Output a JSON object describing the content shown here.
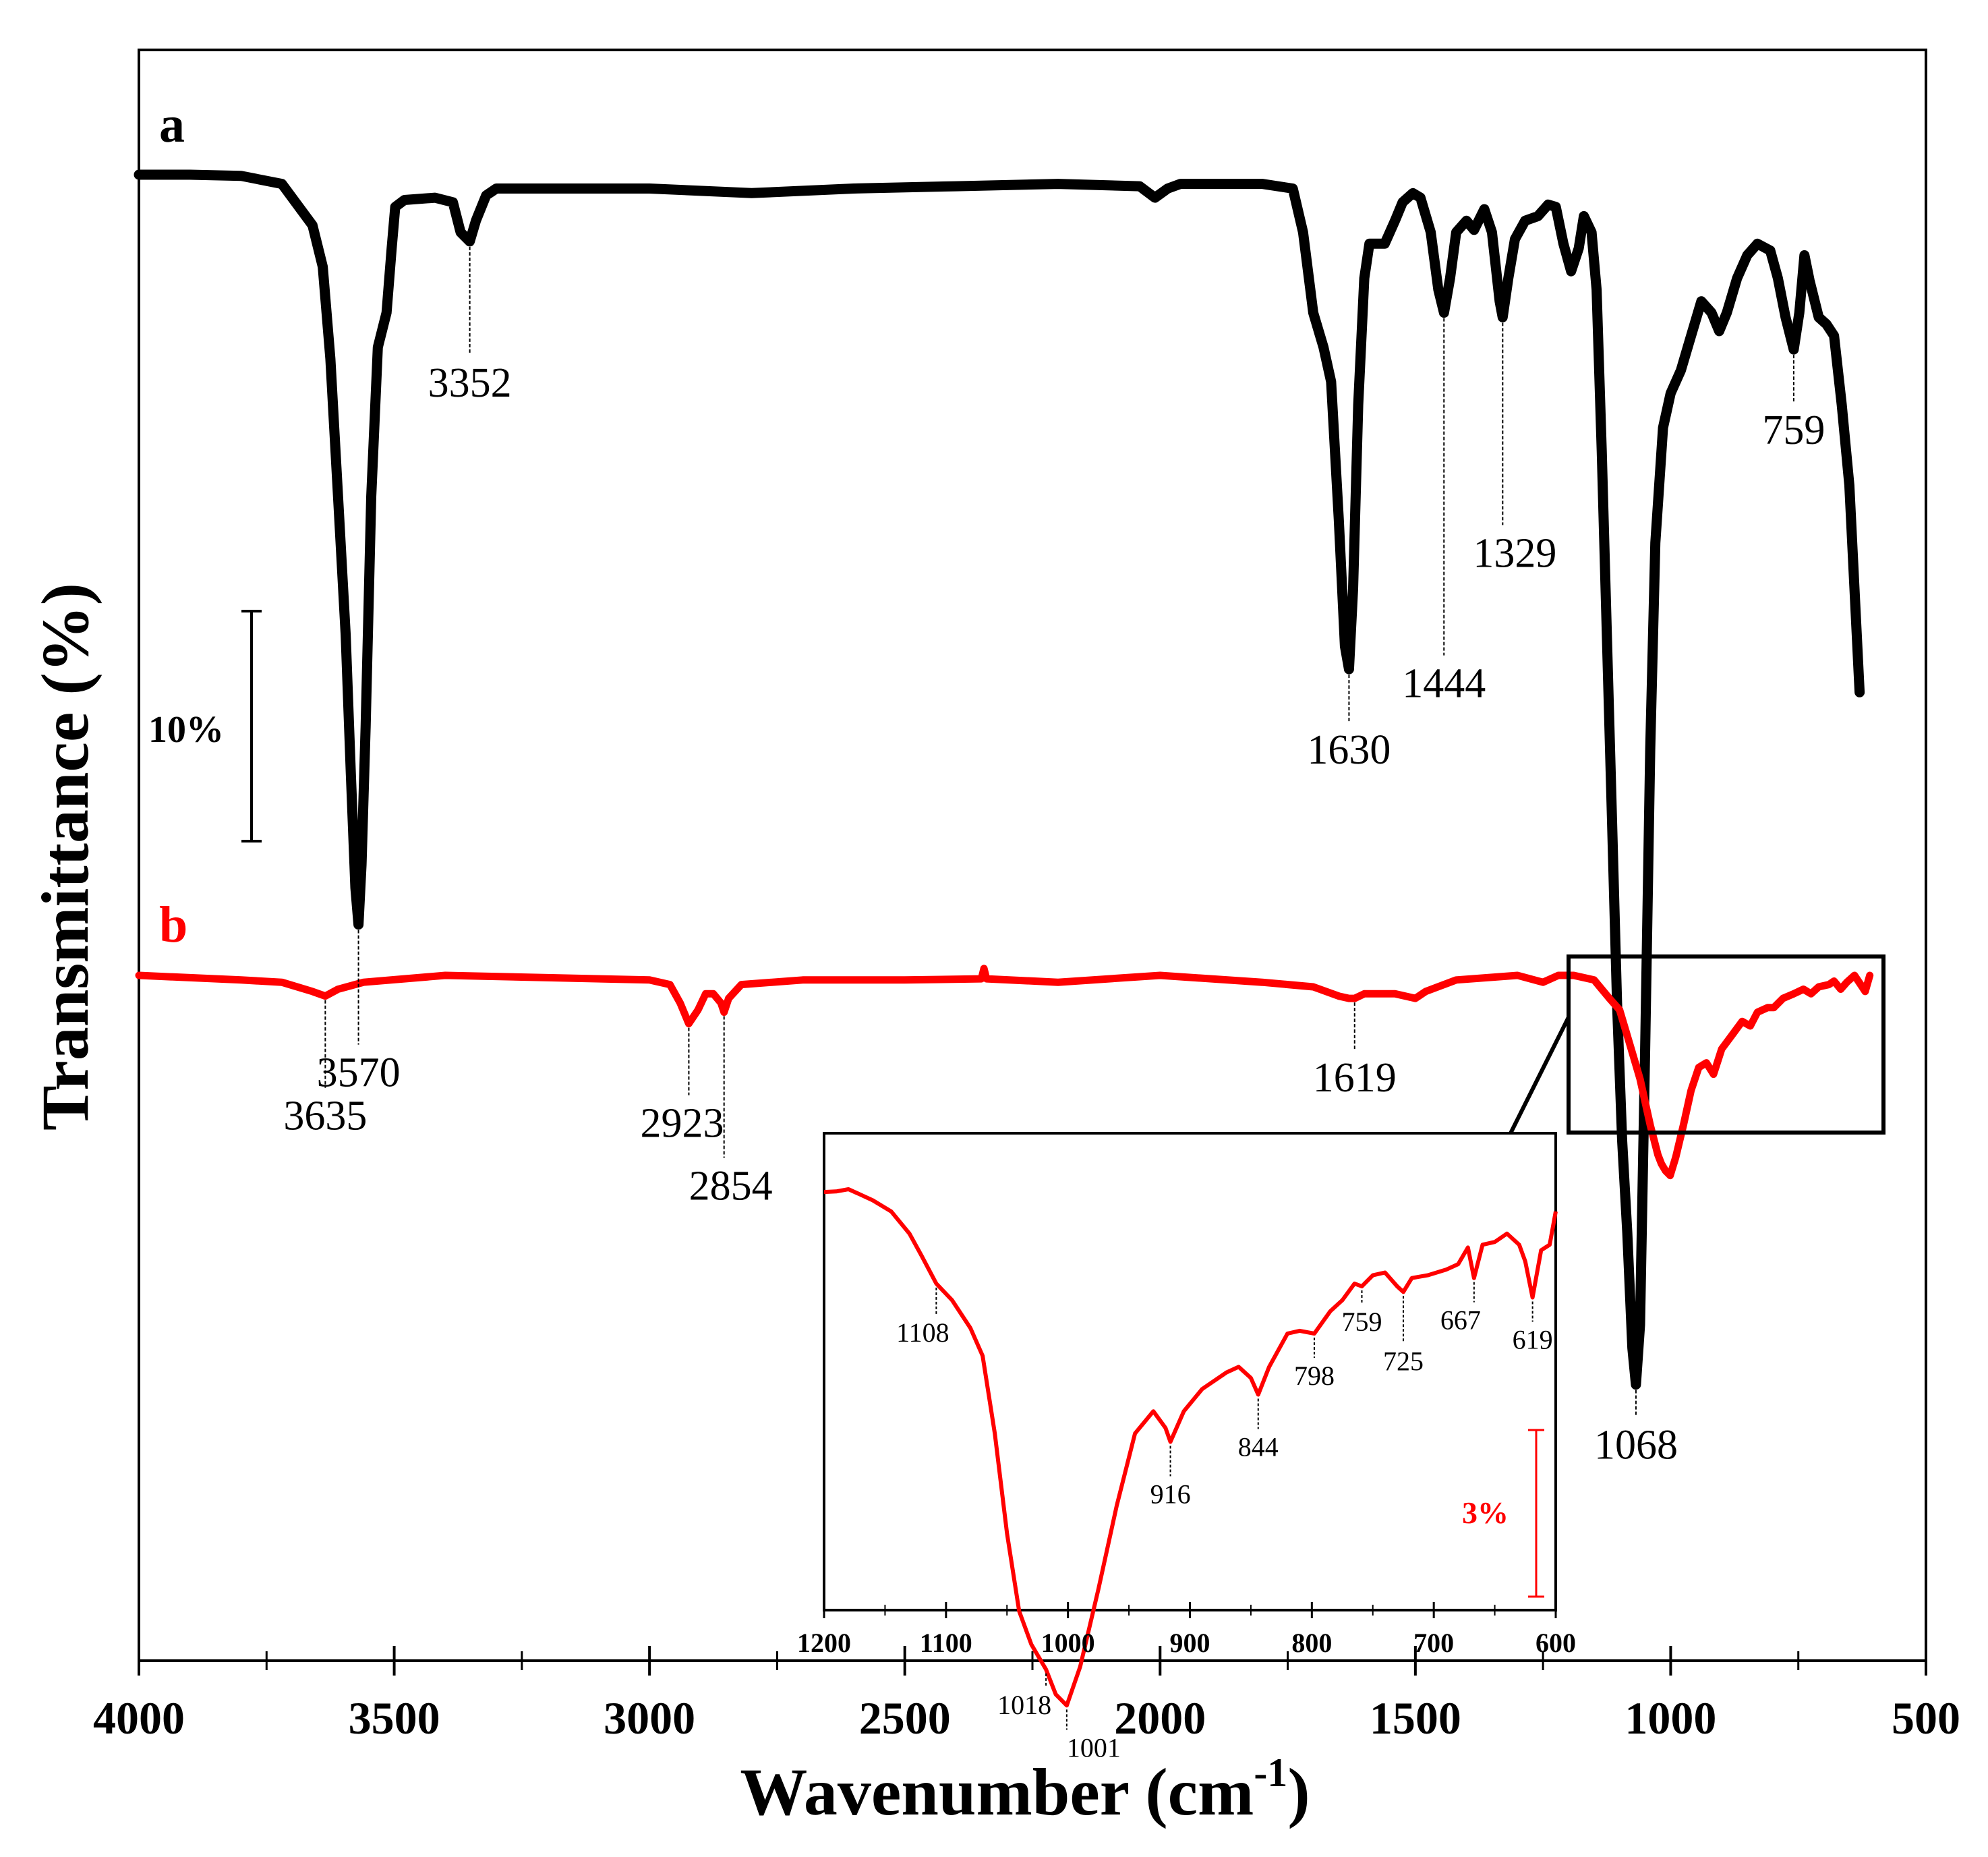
{
  "chart_data": {
    "type": "line",
    "xlabel_main": "Wavenumber (cm",
    "xlabel_sup": "-1",
    "xlabel_tail": ")",
    "ylabel": "Transmittance (%)",
    "xlim": [
      4000,
      500
    ],
    "xticks": [
      "4000",
      "3500",
      "3000",
      "2500",
      "2000",
      "1500",
      "1000",
      "500"
    ],
    "colors": {
      "a": "#000000",
      "b": "#ff0000",
      "frame": "#000000"
    },
    "scale_bar_main": {
      "label": "10%",
      "transmittance_percent": 10
    },
    "series": [
      {
        "name": "a",
        "label": "a",
        "color": "#000000",
        "points": [
          [
            4000,
            0.0
          ],
          [
            3900,
            0.0
          ],
          [
            3800,
            0.05
          ],
          [
            3720,
            0.4
          ],
          [
            3660,
            2.2
          ],
          [
            3640,
            4.0
          ],
          [
            3625,
            8.0
          ],
          [
            3610,
            14.0
          ],
          [
            3595,
            20.0
          ],
          [
            3585,
            26.0
          ],
          [
            3576,
            31.0
          ],
          [
            3570,
            32.6
          ],
          [
            3564,
            30.0
          ],
          [
            3556,
            24.0
          ],
          [
            3545,
            14.0
          ],
          [
            3532,
            7.5
          ],
          [
            3515,
            6.0
          ],
          [
            3505,
            3.2
          ],
          [
            3498,
            1.4
          ],
          [
            3480,
            1.1
          ],
          [
            3420,
            1.0
          ],
          [
            3385,
            1.2
          ],
          [
            3370,
            2.5
          ],
          [
            3352,
            2.9
          ],
          [
            3340,
            2.0
          ],
          [
            3320,
            0.9
          ],
          [
            3300,
            0.6
          ],
          [
            3000,
            0.6
          ],
          [
            2800,
            0.8
          ],
          [
            2600,
            0.6
          ],
          [
            2400,
            0.5
          ],
          [
            2200,
            0.4
          ],
          [
            2040,
            0.5
          ],
          [
            2010,
            1.0
          ],
          [
            1985,
            0.6
          ],
          [
            1960,
            0.4
          ],
          [
            1800,
            0.4
          ],
          [
            1740,
            0.6
          ],
          [
            1720,
            2.5
          ],
          [
            1700,
            6.0
          ],
          [
            1680,
            7.5
          ],
          [
            1665,
            9.0
          ],
          [
            1650,
            15.0
          ],
          [
            1638,
            20.5
          ],
          [
            1630,
            21.5
          ],
          [
            1622,
            18.0
          ],
          [
            1612,
            10.0
          ],
          [
            1600,
            4.5
          ],
          [
            1590,
            3.0
          ],
          [
            1560,
            3.0
          ],
          [
            1540,
            2.0
          ],
          [
            1525,
            1.2
          ],
          [
            1505,
            0.8
          ],
          [
            1490,
            1.0
          ],
          [
            1470,
            2.5
          ],
          [
            1455,
            5.0
          ],
          [
            1444,
            6.0
          ],
          [
            1432,
            4.5
          ],
          [
            1420,
            2.5
          ],
          [
            1400,
            2.0
          ],
          [
            1385,
            2.4
          ],
          [
            1365,
            1.5
          ],
          [
            1350,
            2.5
          ],
          [
            1335,
            5.5
          ],
          [
            1329,
            6.2
          ],
          [
            1318,
            4.5
          ],
          [
            1305,
            2.8
          ],
          [
            1285,
            2.0
          ],
          [
            1260,
            1.8
          ],
          [
            1240,
            1.3
          ],
          [
            1225,
            1.4
          ],
          [
            1210,
            3.0
          ],
          [
            1195,
            4.2
          ],
          [
            1180,
            3.2
          ],
          [
            1170,
            1.8
          ],
          [
            1155,
            2.5
          ],
          [
            1145,
            5.0
          ],
          [
            1135,
            12.0
          ],
          [
            1125,
            20.0
          ],
          [
            1115,
            28.0
          ],
          [
            1105,
            36.0
          ],
          [
            1095,
            42.0
          ],
          [
            1085,
            46.0
          ],
          [
            1075,
            51.0
          ],
          [
            1068,
            52.6
          ],
          [
            1060,
            50.0
          ],
          [
            1050,
            38.0
          ],
          [
            1040,
            25.0
          ],
          [
            1030,
            16.0
          ],
          [
            1015,
            11.0
          ],
          [
            1000,
            9.5
          ],
          [
            980,
            8.5
          ],
          [
            960,
            7.0
          ],
          [
            940,
            5.5
          ],
          [
            920,
            6.0
          ],
          [
            905,
            6.8
          ],
          [
            890,
            6.0
          ],
          [
            870,
            4.5
          ],
          [
            850,
            3.5
          ],
          [
            830,
            3.0
          ],
          [
            805,
            3.3
          ],
          [
            790,
            4.5
          ],
          [
            775,
            6.2
          ],
          [
            759,
            7.6
          ],
          [
            748,
            6.0
          ],
          [
            738,
            3.5
          ],
          [
            728,
            4.6
          ],
          [
            710,
            6.2
          ],
          [
            695,
            6.5
          ],
          [
            680,
            7.0
          ],
          [
            665,
            10.0
          ],
          [
            650,
            13.5
          ],
          [
            640,
            18.0
          ],
          [
            630,
            22.5
          ]
        ],
        "peaks": [
          {
            "label": "3570",
            "x": 3570
          },
          {
            "label": "3352",
            "x": 3352
          },
          {
            "label": "1630",
            "x": 1630
          },
          {
            "label": "1444",
            "x": 1444
          },
          {
            "label": "1329",
            "x": 1329
          },
          {
            "label": "1068",
            "x": 1068
          },
          {
            "label": "759",
            "x": 759
          }
        ]
      },
      {
        "name": "b",
        "label": "b",
        "color": "#ff0000",
        "points": [
          [
            4000,
            0.0
          ],
          [
            3900,
            0.1
          ],
          [
            3800,
            0.2
          ],
          [
            3720,
            0.3
          ],
          [
            3660,
            0.7
          ],
          [
            3635,
            0.9
          ],
          [
            3610,
            0.6
          ],
          [
            3560,
            0.3
          ],
          [
            3400,
            0.0
          ],
          [
            3200,
            0.1
          ],
          [
            3000,
            0.2
          ],
          [
            2960,
            0.4
          ],
          [
            2940,
            1.2
          ],
          [
            2923,
            2.1
          ],
          [
            2905,
            1.5
          ],
          [
            2890,
            0.8
          ],
          [
            2875,
            0.8
          ],
          [
            2860,
            1.2
          ],
          [
            2854,
            1.6
          ],
          [
            2845,
            1.0
          ],
          [
            2820,
            0.4
          ],
          [
            2700,
            0.2
          ],
          [
            2500,
            0.2
          ],
          [
            2350,
            0.15
          ],
          [
            2345,
            -0.3
          ],
          [
            2340,
            0.15
          ],
          [
            2200,
            0.3
          ],
          [
            2000,
            0.0
          ],
          [
            1800,
            0.3
          ],
          [
            1700,
            0.5
          ],
          [
            1650,
            0.9
          ],
          [
            1630,
            1.0
          ],
          [
            1619,
            1.0
          ],
          [
            1600,
            0.8
          ],
          [
            1540,
            0.8
          ],
          [
            1500,
            1.0
          ],
          [
            1480,
            0.7
          ],
          [
            1420,
            0.2
          ],
          [
            1300,
            0.0
          ],
          [
            1250,
            0.3
          ],
          [
            1220,
            0.0
          ],
          [
            1190,
            0.0
          ],
          [
            1150,
            0.2
          ],
          [
            1120,
            1.0
          ],
          [
            1100,
            1.5
          ],
          [
            1080,
            3.0
          ],
          [
            1060,
            4.5
          ],
          [
            1040,
            6.5
          ],
          [
            1025,
            7.8
          ],
          [
            1018,
            8.2
          ],
          [
            1010,
            8.5
          ],
          [
            1001,
            8.7
          ],
          [
            990,
            7.9
          ],
          [
            975,
            6.5
          ],
          [
            960,
            5.0
          ],
          [
            945,
            4.0
          ],
          [
            930,
            3.8
          ],
          [
            916,
            4.3
          ],
          [
            900,
            3.2
          ],
          [
            880,
            2.6
          ],
          [
            860,
            2.0
          ],
          [
            844,
            2.2
          ],
          [
            830,
            1.6
          ],
          [
            810,
            1.4
          ],
          [
            798,
            1.4
          ],
          [
            780,
            1.0
          ],
          [
            759,
            0.8
          ],
          [
            740,
            0.6
          ],
          [
            725,
            0.8
          ],
          [
            710,
            0.5
          ],
          [
            690,
            0.4
          ],
          [
            680,
            0.25
          ],
          [
            667,
            0.6
          ],
          [
            655,
            0.3
          ],
          [
            640,
            0.0
          ],
          [
            625,
            0.5
          ],
          [
            619,
            0.7
          ],
          [
            610,
            0.0
          ]
        ]
      }
    ],
    "b_peaks": [
      {
        "label": "3635",
        "x": 3635
      },
      {
        "label": "2923",
        "x": 2923
      },
      {
        "label": "2854",
        "x": 2854
      },
      {
        "label": "1619",
        "x": 1619
      }
    ],
    "inset": {
      "xlim": [
        1200,
        600
      ],
      "xticks": [
        "1200",
        "1100",
        "1000",
        "900",
        "800",
        "700",
        "600"
      ],
      "scale_bar": {
        "label": "3%",
        "transmittance_percent": 3
      },
      "points": [
        [
          1200,
          0.05
        ],
        [
          1190,
          0.04
        ],
        [
          1180,
          0.0
        ],
        [
          1170,
          0.1
        ],
        [
          1160,
          0.2
        ],
        [
          1145,
          0.4
        ],
        [
          1130,
          0.8
        ],
        [
          1120,
          1.2
        ],
        [
          1108,
          1.7
        ],
        [
          1095,
          2.0
        ],
        [
          1080,
          2.5
        ],
        [
          1070,
          3.0
        ],
        [
          1060,
          4.4
        ],
        [
          1050,
          6.2
        ],
        [
          1040,
          7.6
        ],
        [
          1030,
          8.2
        ],
        [
          1018,
          8.65
        ],
        [
          1010,
          9.1
        ],
        [
          1001,
          9.3
        ],
        [
          990,
          8.6
        ],
        [
          975,
          7.2
        ],
        [
          960,
          5.7
        ],
        [
          945,
          4.4
        ],
        [
          930,
          4.0
        ],
        [
          920,
          4.3
        ],
        [
          916,
          4.55
        ],
        [
          905,
          4.0
        ],
        [
          890,
          3.6
        ],
        [
          870,
          3.3
        ],
        [
          860,
          3.2
        ],
        [
          850,
          3.4
        ],
        [
          844,
          3.7
        ],
        [
          835,
          3.2
        ],
        [
          820,
          2.6
        ],
        [
          810,
          2.55
        ],
        [
          798,
          2.6
        ],
        [
          785,
          2.2
        ],
        [
          775,
          2.0
        ],
        [
          765,
          1.7
        ],
        [
          759,
          1.75
        ],
        [
          750,
          1.55
        ],
        [
          740,
          1.5
        ],
        [
          730,
          1.75
        ],
        [
          725,
          1.85
        ],
        [
          718,
          1.6
        ],
        [
          705,
          1.55
        ],
        [
          690,
          1.45
        ],
        [
          680,
          1.35
        ],
        [
          672,
          1.05
        ],
        [
          667,
          1.6
        ],
        [
          660,
          1.0
        ],
        [
          650,
          0.95
        ],
        [
          640,
          0.8
        ],
        [
          630,
          1.0
        ],
        [
          625,
          1.3
        ],
        [
          619,
          1.95
        ],
        [
          612,
          1.1
        ],
        [
          605,
          1.0
        ],
        [
          600,
          0.4
        ]
      ],
      "peaks": [
        {
          "label": "1108",
          "x": 1108
        },
        {
          "label": "1018",
          "x": 1018
        },
        {
          "label": "1001",
          "x": 1001
        },
        {
          "label": "916",
          "x": 916
        },
        {
          "label": "844",
          "x": 844
        },
        {
          "label": "798",
          "x": 798
        },
        {
          "label": "759",
          "x": 759
        },
        {
          "label": "725",
          "x": 725
        },
        {
          "label": "667",
          "x": 667
        },
        {
          "label": "619",
          "x": 619
        }
      ]
    }
  }
}
